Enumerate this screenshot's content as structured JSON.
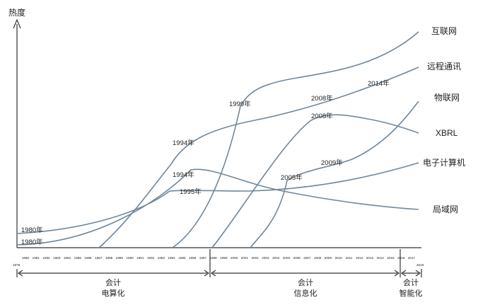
{
  "y_axis_label": "热度",
  "x_axis": {
    "start_label": "1979",
    "end_label": "2018",
    "ticks": [
      "1980",
      "1981",
      "1982",
      "1983",
      "1984",
      "1985",
      "1986",
      "1987",
      "1988",
      "1989",
      "1990",
      "1991",
      "1992",
      "1993",
      "1994",
      "1995",
      "1996",
      "1997",
      "1998",
      "1999",
      "2000",
      "2001",
      "2002",
      "2003",
      "2004",
      "2005",
      "2006",
      "2007",
      "2008",
      "2009",
      "2010",
      "2011",
      "2012",
      "2013",
      "2014",
      "2015",
      "2016",
      "2017"
    ]
  },
  "technologies": [
    {
      "key": "internet",
      "label": "互联网",
      "start": "1999年",
      "annotations": []
    },
    {
      "key": "remote",
      "label": "远程通讯",
      "start": "1994年",
      "annotations": [
        "2008年",
        "2014年"
      ]
    },
    {
      "key": "iot",
      "label": "物联网",
      "start": "",
      "annotations": [
        "2009年"
      ]
    },
    {
      "key": "xbrl",
      "label": "XBRL",
      "start": "",
      "annotations": [
        "2008年"
      ]
    },
    {
      "key": "computer",
      "label": "电子计算机",
      "start": "1980年",
      "annotations": [
        "1995年"
      ]
    },
    {
      "key": "lan",
      "label": "局域网",
      "start": "1980年",
      "annotations": [
        "1994年"
      ]
    }
  ],
  "misc_annotations": [
    "2005年"
  ],
  "eras": [
    {
      "line1": "会计",
      "line2": "电算化"
    },
    {
      "line1": "会计",
      "line2": "信息化"
    },
    {
      "line1": "会计",
      "line2": "智能化"
    }
  ],
  "colors": {
    "curve": "#6f879b",
    "axis": "#333333",
    "text": "#222222"
  }
}
